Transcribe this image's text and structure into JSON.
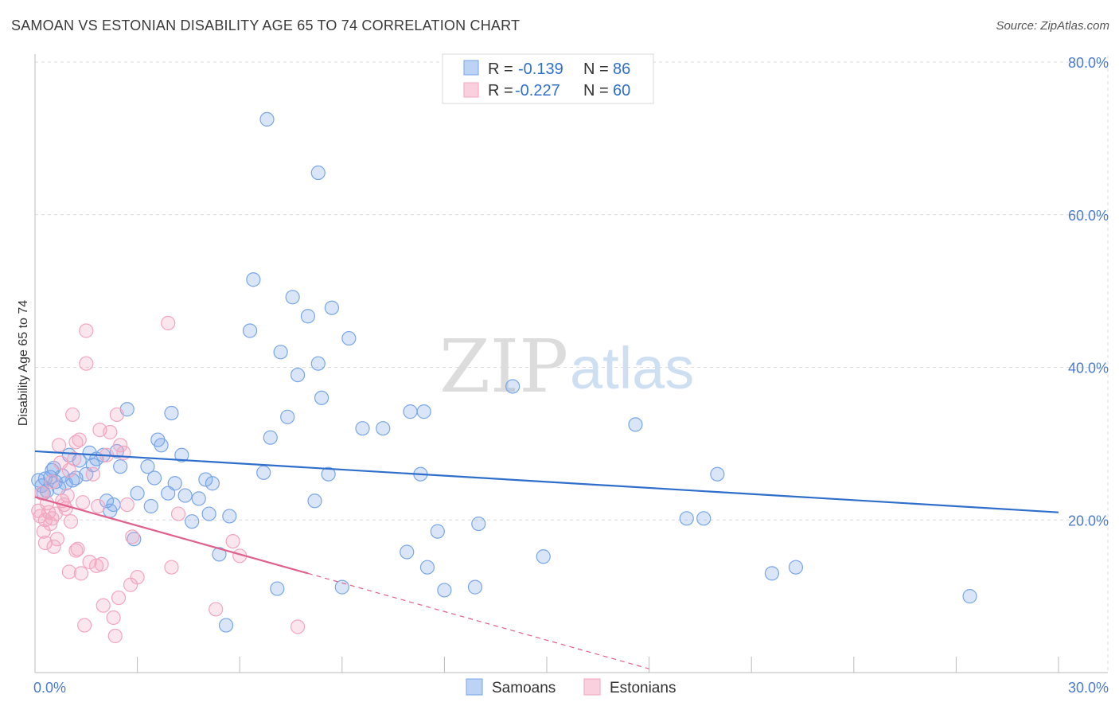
{
  "title": "SAMOAN VS ESTONIAN DISABILITY AGE 65 TO 74 CORRELATION CHART",
  "source": "Source: ZipAtlas.com",
  "chart_data": {
    "type": "scatter",
    "title": "SAMOAN VS ESTONIAN DISABILITY AGE 65 TO 74 CORRELATION CHART",
    "xlabel": "",
    "ylabel": "Disability Age 65 to 74",
    "xlim": [
      0,
      30
    ],
    "ylim": [
      0,
      80
    ],
    "x_tick_labels": [
      "0.0%",
      "30.0%"
    ],
    "y_ticks": [
      20,
      40,
      60,
      80
    ],
    "y_tick_labels": [
      "20.0%",
      "40.0%",
      "60.0%",
      "80.0%"
    ],
    "grid": true,
    "legend_top": [
      {
        "r_label": "R =",
        "r_value": "-0.139",
        "n_label": "N =",
        "n_value": "86"
      },
      {
        "r_label": "R =",
        "r_value": "-0.227",
        "n_label": "N =",
        "n_value": "60"
      }
    ],
    "series": [
      {
        "name": "Samoans",
        "color": "#7aa6e6",
        "line_color": "#2f6fcb",
        "trend": {
          "x0": 0,
          "y0": 29.0,
          "x1": 30,
          "y1": 21.0
        },
        "points": [
          [
            0.1,
            25.2
          ],
          [
            0.2,
            24.5
          ],
          [
            0.3,
            25.4
          ],
          [
            0.35,
            23.8
          ],
          [
            0.45,
            25.6
          ],
          [
            0.5,
            26.5
          ],
          [
            0.6,
            25.0
          ],
          [
            0.7,
            24.2
          ],
          [
            0.8,
            25.8
          ],
          [
            0.9,
            24.8
          ],
          [
            1.0,
            28.5
          ],
          [
            1.1,
            25.2
          ],
          [
            1.2,
            25.5
          ],
          [
            1.3,
            27.8
          ],
          [
            1.5,
            26.0
          ],
          [
            1.6,
            28.8
          ],
          [
            1.8,
            28.0
          ],
          [
            2.0,
            28.5
          ],
          [
            2.1,
            22.5
          ],
          [
            2.2,
            21.2
          ],
          [
            2.3,
            22.0
          ],
          [
            2.4,
            29.0
          ],
          [
            2.5,
            27.0
          ],
          [
            2.7,
            34.5
          ],
          [
            2.9,
            17.5
          ],
          [
            3.0,
            23.5
          ],
          [
            3.3,
            27.0
          ],
          [
            3.4,
            21.8
          ],
          [
            3.5,
            25.5
          ],
          [
            3.6,
            30.5
          ],
          [
            3.7,
            29.8
          ],
          [
            3.9,
            23.5
          ],
          [
            4.0,
            34.0
          ],
          [
            4.1,
            24.8
          ],
          [
            4.3,
            28.5
          ],
          [
            4.4,
            23.2
          ],
          [
            4.6,
            19.8
          ],
          [
            4.8,
            22.8
          ],
          [
            5.0,
            25.3
          ],
          [
            5.1,
            20.8
          ],
          [
            5.2,
            24.8
          ],
          [
            5.4,
            15.5
          ],
          [
            5.6,
            6.2
          ],
          [
            5.7,
            20.5
          ],
          [
            6.3,
            44.8
          ],
          [
            6.4,
            51.5
          ],
          [
            6.7,
            26.2
          ],
          [
            6.9,
            30.8
          ],
          [
            7.1,
            11.0
          ],
          [
            7.2,
            42.0
          ],
          [
            7.4,
            33.5
          ],
          [
            7.55,
            49.2
          ],
          [
            7.7,
            39.0
          ],
          [
            8.0,
            46.7
          ],
          [
            8.2,
            22.5
          ],
          [
            8.3,
            40.5
          ],
          [
            8.4,
            36.0
          ],
          [
            8.6,
            26.0
          ],
          [
            8.7,
            47.8
          ],
          [
            9.0,
            11.2
          ],
          [
            9.2,
            43.8
          ],
          [
            9.6,
            32.0
          ],
          [
            10.2,
            32.0
          ],
          [
            10.9,
            15.8
          ],
          [
            11.0,
            34.2
          ],
          [
            11.3,
            26.0
          ],
          [
            11.4,
            34.2
          ],
          [
            11.5,
            13.8
          ],
          [
            11.8,
            18.5
          ],
          [
            12.0,
            10.8
          ],
          [
            12.9,
            11.2
          ],
          [
            13.0,
            19.5
          ],
          [
            14.0,
            37.5
          ],
          [
            14.9,
            15.2
          ],
          [
            17.6,
            32.5
          ],
          [
            19.1,
            20.2
          ],
          [
            19.6,
            20.2
          ],
          [
            20.0,
            26.0
          ],
          [
            21.6,
            13.0
          ],
          [
            22.3,
            13.8
          ],
          [
            27.4,
            10.0
          ],
          [
            6.8,
            72.5
          ],
          [
            8.3,
            65.5
          ],
          [
            0.25,
            23.5
          ],
          [
            0.55,
            26.8
          ],
          [
            1.7,
            27.2
          ]
        ]
      },
      {
        "name": "Estonians",
        "color": "#f2a6c0",
        "line_color": "#e0608e",
        "trend": {
          "x0": 0,
          "y0": 23.0,
          "x1": 8.0,
          "y1": 13.0
        },
        "trend_dashed": {
          "x0": 8.0,
          "y0": 13.0,
          "x1": 18.0,
          "y1": 0.5
        },
        "points": [
          [
            0.1,
            21.2
          ],
          [
            0.15,
            20.5
          ],
          [
            0.2,
            23.5
          ],
          [
            0.25,
            18.5
          ],
          [
            0.3,
            17.0
          ],
          [
            0.35,
            22.2
          ],
          [
            0.4,
            21.0
          ],
          [
            0.45,
            19.5
          ],
          [
            0.5,
            20.2
          ],
          [
            0.55,
            16.5
          ],
          [
            0.6,
            20.8
          ],
          [
            0.65,
            17.5
          ],
          [
            0.7,
            29.8
          ],
          [
            0.75,
            27.5
          ],
          [
            0.8,
            22.5
          ],
          [
            0.85,
            22.0
          ],
          [
            0.9,
            21.5
          ],
          [
            0.95,
            23.2
          ],
          [
            1.0,
            13.2
          ],
          [
            1.05,
            19.8
          ],
          [
            1.1,
            33.8
          ],
          [
            1.15,
            28.0
          ],
          [
            1.2,
            30.2
          ],
          [
            1.25,
            16.2
          ],
          [
            1.3,
            30.5
          ],
          [
            1.35,
            13.0
          ],
          [
            1.4,
            22.3
          ],
          [
            1.45,
            6.2
          ],
          [
            1.5,
            40.5
          ],
          [
            1.5,
            44.8
          ],
          [
            1.6,
            14.5
          ],
          [
            1.7,
            26.0
          ],
          [
            1.8,
            14.0
          ],
          [
            1.85,
            21.8
          ],
          [
            1.9,
            31.8
          ],
          [
            1.95,
            14.2
          ],
          [
            2.0,
            8.8
          ],
          [
            2.1,
            28.5
          ],
          [
            2.2,
            31.5
          ],
          [
            2.3,
            7.2
          ],
          [
            2.35,
            4.8
          ],
          [
            2.4,
            33.8
          ],
          [
            2.45,
            9.8
          ],
          [
            2.5,
            29.8
          ],
          [
            2.6,
            28.8
          ],
          [
            2.8,
            11.5
          ],
          [
            2.85,
            17.8
          ],
          [
            3.0,
            12.5
          ],
          [
            3.9,
            45.8
          ],
          [
            4.0,
            13.8
          ],
          [
            4.2,
            20.8
          ],
          [
            5.3,
            8.3
          ],
          [
            5.8,
            17.2
          ],
          [
            6.0,
            15.3
          ],
          [
            7.7,
            6.0
          ],
          [
            1.0,
            26.5
          ],
          [
            0.5,
            25.0
          ],
          [
            1.2,
            16.0
          ],
          [
            2.7,
            22.0
          ],
          [
            0.3,
            20.0
          ]
        ]
      }
    ]
  }
}
